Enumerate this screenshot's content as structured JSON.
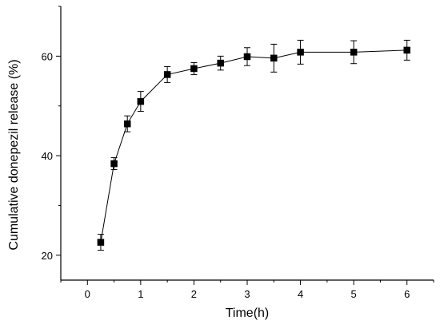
{
  "chart_data": {
    "type": "scatter",
    "title": "",
    "xlabel": "Time(h)",
    "ylabel": "Cumulative donepezil release (%)",
    "xlim": [
      -0.5,
      6.5
    ],
    "ylim": [
      15,
      70
    ],
    "x_ticks": [
      0,
      1,
      2,
      3,
      4,
      5,
      6
    ],
    "y_ticks": [
      20,
      40,
      60
    ],
    "x_tick_labels": [
      "0",
      "1",
      "2",
      "3",
      "4",
      "5",
      "6"
    ],
    "y_tick_labels": [
      "20",
      "40",
      "60"
    ],
    "grid": false,
    "legend": "none",
    "connect_points": true,
    "marker": "square",
    "series": [
      {
        "x": [
          0.25,
          0.5,
          0.75,
          1,
          1.5,
          2,
          2.5,
          3,
          3.5,
          4,
          5,
          6
        ],
        "y": [
          22.6,
          38.4,
          46.4,
          50.9,
          56.3,
          57.5,
          58.6,
          59.9,
          59.6,
          60.8,
          60.8,
          61.2
        ],
        "y_error": [
          1.6,
          1.2,
          1.6,
          2.0,
          1.6,
          1.2,
          1.4,
          1.8,
          2.8,
          2.4,
          2.3,
          2.0
        ]
      }
    ],
    "colors": {
      "line": "#000000",
      "marker": "#000000",
      "axis": "#000000"
    }
  }
}
